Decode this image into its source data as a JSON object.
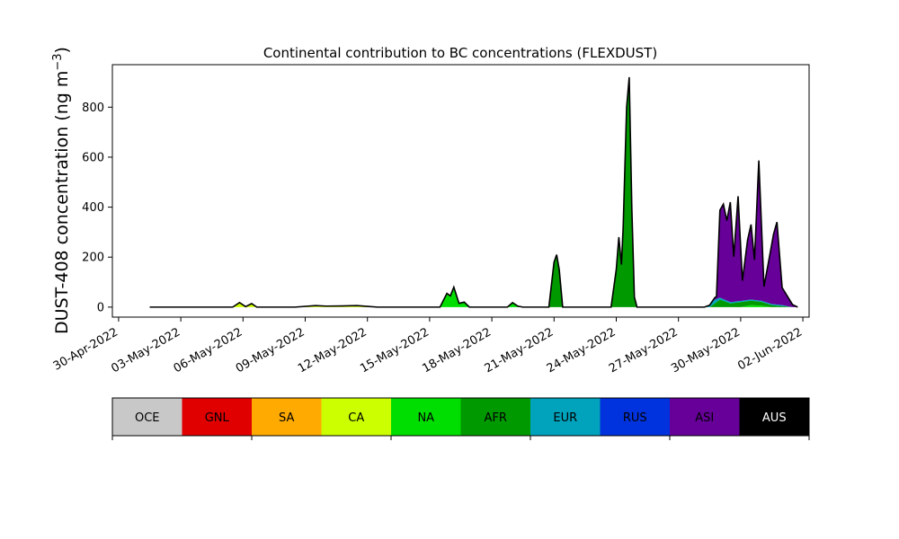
{
  "chart_data": {
    "type": "area",
    "stacked": true,
    "title": "Continental contribution to BC concentrations (FLEXDUST)",
    "ylabel_main": "DUST-408 concentration (ng m",
    "ylabel_sup": "−3",
    "ylabel_close": ")",
    "xlabel": "",
    "ylim": [
      -40,
      970
    ],
    "xlim_days": [
      -0.3,
      33.3
    ],
    "yticks": [
      0,
      200,
      400,
      600,
      800
    ],
    "ytick_labels": [
      "0",
      "200",
      "400",
      "600",
      "800"
    ],
    "xticks": [
      "2022-04-30",
      "2022-05-03",
      "2022-05-06",
      "2022-05-09",
      "2022-05-12",
      "2022-05-15",
      "2022-05-18",
      "2022-05-21",
      "2022-05-24",
      "2022-05-27",
      "2022-05-30",
      "2022-06-02"
    ],
    "xtick_labels": [
      "30-Apr-2022",
      "03-May-2022",
      "06-May-2022",
      "09-May-2022",
      "12-May-2022",
      "15-May-2022",
      "18-May-2022",
      "21-May-2022",
      "24-May-2022",
      "27-May-2022",
      "30-May-2022",
      "02-Jun-2022"
    ],
    "legend": {
      "placement": "below",
      "entries": [
        {
          "label": "OCE",
          "color": "#c8c8c8"
        },
        {
          "label": "GNL",
          "color": "#e00000"
        },
        {
          "label": "SA",
          "color": "#ffaa00"
        },
        {
          "label": "CA",
          "color": "#ccff00"
        },
        {
          "label": "NA",
          "color": "#00dd00"
        },
        {
          "label": "AFR",
          "color": "#009900"
        },
        {
          "label": "EUR",
          "color": "#00a2bc"
        },
        {
          "label": "RUS",
          "color": "#0033dd"
        },
        {
          "label": "ASI",
          "color": "#660099"
        },
        {
          "label": "AUS",
          "color": "#000000"
        }
      ]
    },
    "series": [
      {
        "name": "CA",
        "color": "#ccff00",
        "points": [
          [
            "2022-05-01T12:00",
            0
          ],
          [
            "2022-05-02T12:00",
            0
          ],
          [
            "2022-05-05T12:00",
            0
          ],
          [
            "2022-05-05T20:00",
            18
          ],
          [
            "2022-05-06T03:00",
            2
          ],
          [
            "2022-05-06T10:00",
            14
          ],
          [
            "2022-05-06T16:00",
            0
          ],
          [
            "2022-05-08T12:00",
            0
          ],
          [
            "2022-05-09T12:00",
            6
          ],
          [
            "2022-05-10T00:00",
            4
          ],
          [
            "2022-05-11T00:00",
            5
          ],
          [
            "2022-05-11T12:00",
            6
          ],
          [
            "2022-05-12T00:00",
            3
          ],
          [
            "2022-05-12T12:00",
            0
          ],
          [
            "2022-06-01T12:00",
            0
          ]
        ]
      },
      {
        "name": "NA",
        "color": "#00dd00",
        "points": [
          [
            "2022-05-01T12:00",
            0
          ],
          [
            "2022-05-15T12:00",
            0
          ],
          [
            "2022-05-15T20:00",
            55
          ],
          [
            "2022-05-16T00:00",
            45
          ],
          [
            "2022-05-16T04:00",
            80
          ],
          [
            "2022-05-16T10:00",
            15
          ],
          [
            "2022-05-16T16:00",
            20
          ],
          [
            "2022-05-16T22:00",
            0
          ],
          [
            "2022-05-18T18:00",
            0
          ],
          [
            "2022-05-19T00:00",
            18
          ],
          [
            "2022-05-19T06:00",
            4
          ],
          [
            "2022-05-19T12:00",
            0
          ],
          [
            "2022-05-30T00:00",
            0
          ],
          [
            "2022-05-30T12:00",
            8
          ],
          [
            "2022-05-31T00:00",
            6
          ],
          [
            "2022-05-31T12:00",
            0
          ],
          [
            "2022-06-01T12:00",
            0
          ]
        ]
      },
      {
        "name": "AFR",
        "color": "#009900",
        "points": [
          [
            "2022-05-01T12:00",
            0
          ],
          [
            "2022-05-20T18:00",
            0
          ],
          [
            "2022-05-21T00:00",
            180
          ],
          [
            "2022-05-21T03:00",
            210
          ],
          [
            "2022-05-21T06:00",
            150
          ],
          [
            "2022-05-21T10:00",
            0
          ],
          [
            "2022-05-23T18:00",
            0
          ],
          [
            "2022-05-24T00:00",
            150
          ],
          [
            "2022-05-24T03:00",
            280
          ],
          [
            "2022-05-24T06:00",
            170
          ],
          [
            "2022-05-24T08:00",
            320
          ],
          [
            "2022-05-24T12:00",
            800
          ],
          [
            "2022-05-24T15:00",
            920
          ],
          [
            "2022-05-24T18:00",
            400
          ],
          [
            "2022-05-24T21:00",
            40
          ],
          [
            "2022-05-25T00:00",
            0
          ],
          [
            "2022-05-28T12:00",
            0
          ],
          [
            "2022-05-29T00:00",
            30
          ],
          [
            "2022-05-29T12:00",
            15
          ],
          [
            "2022-05-30T00:00",
            20
          ],
          [
            "2022-05-30T12:00",
            18
          ],
          [
            "2022-05-31T00:00",
            15
          ],
          [
            "2022-05-31T12:00",
            8
          ],
          [
            "2022-06-01T12:00",
            0
          ]
        ]
      },
      {
        "name": "EUR",
        "color": "#00a2bc",
        "points": [
          [
            "2022-05-01T12:00",
            0
          ],
          [
            "2022-05-28T06:00",
            0
          ],
          [
            "2022-05-28T18:00",
            15
          ],
          [
            "2022-05-29T00:00",
            8
          ],
          [
            "2022-05-29T12:00",
            5
          ],
          [
            "2022-06-01T00:00",
            4
          ],
          [
            "2022-06-01T12:00",
            0
          ]
        ]
      },
      {
        "name": "ASI",
        "color": "#660099",
        "points": [
          [
            "2022-05-01T12:00",
            0
          ],
          [
            "2022-05-28T12:00",
            0
          ],
          [
            "2022-05-28T20:00",
            10
          ],
          [
            "2022-05-29T00:00",
            350
          ],
          [
            "2022-05-29T04:00",
            380
          ],
          [
            "2022-05-29T08:00",
            320
          ],
          [
            "2022-05-29T12:00",
            400
          ],
          [
            "2022-05-29T16:00",
            180
          ],
          [
            "2022-05-29T21:00",
            420
          ],
          [
            "2022-05-30T02:00",
            80
          ],
          [
            "2022-05-30T08:00",
            240
          ],
          [
            "2022-05-30T12:00",
            300
          ],
          [
            "2022-05-30T16:00",
            160
          ],
          [
            "2022-05-30T21:00",
            560
          ],
          [
            "2022-05-31T03:00",
            60
          ],
          [
            "2022-05-31T09:00",
            180
          ],
          [
            "2022-05-31T14:00",
            280
          ],
          [
            "2022-05-31T18:00",
            330
          ],
          [
            "2022-06-01T00:00",
            70
          ],
          [
            "2022-06-01T06:00",
            40
          ],
          [
            "2022-06-01T12:00",
            10
          ],
          [
            "2022-06-01T18:00",
            0
          ]
        ]
      },
      {
        "name": "AUS",
        "color": "#000000",
        "points": [
          [
            "2022-05-01T12:00",
            0
          ],
          [
            "2022-06-01T18:00",
            0
          ]
        ]
      }
    ]
  }
}
